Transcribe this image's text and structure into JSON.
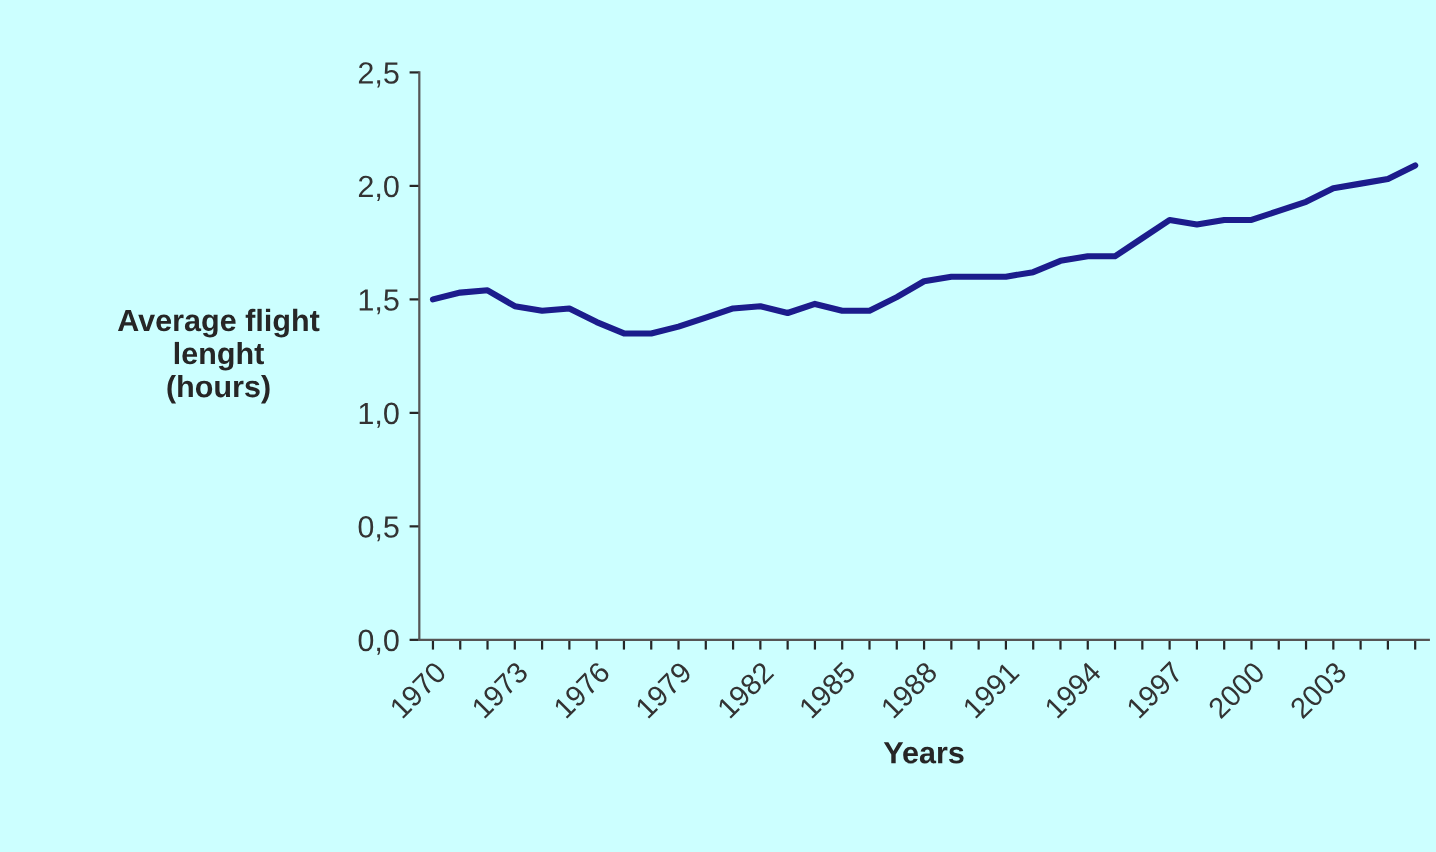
{
  "chart_data": {
    "type": "line",
    "xlabel": "Years",
    "ylabel": "Average flight\nlenght\n(hours)",
    "categories": [
      "1970",
      null,
      null,
      "1973",
      null,
      null,
      "1976",
      null,
      null,
      "1979",
      null,
      null,
      "1982",
      null,
      null,
      "1985",
      null,
      null,
      "1988",
      null,
      null,
      "1991",
      null,
      null,
      "1994",
      null,
      null,
      "1997",
      null,
      null,
      "2000",
      null,
      null,
      "2003",
      null,
      null,
      null
    ],
    "series": [
      {
        "color": "#1c1c8c",
        "values": [
          1.5,
          1.53,
          1.54,
          1.47,
          1.45,
          1.46,
          1.4,
          1.35,
          1.35,
          1.38,
          1.42,
          1.46,
          1.47,
          1.44,
          1.48,
          1.45,
          1.45,
          1.51,
          1.58,
          1.6,
          1.6,
          1.6,
          1.62,
          1.67,
          1.69,
          1.69,
          1.77,
          1.85,
          1.83,
          1.85,
          1.85,
          1.89,
          1.93,
          1.99,
          2.01,
          2.03,
          2.09
        ]
      }
    ],
    "ylim": [
      0,
      2.5
    ],
    "yticks": [
      {
        "value": 0,
        "label": "0,0"
      },
      {
        "value": 0.5,
        "label": "0,5"
      },
      {
        "value": 1.0,
        "label": "1,0"
      },
      {
        "value": 1.5,
        "label": "1,5"
      },
      {
        "value": 2.0,
        "label": "2,0"
      },
      {
        "value": 2.5,
        "label": "2,5"
      }
    ],
    "grid": false,
    "legend": false,
    "marker": "none",
    "line_style": "solid"
  }
}
